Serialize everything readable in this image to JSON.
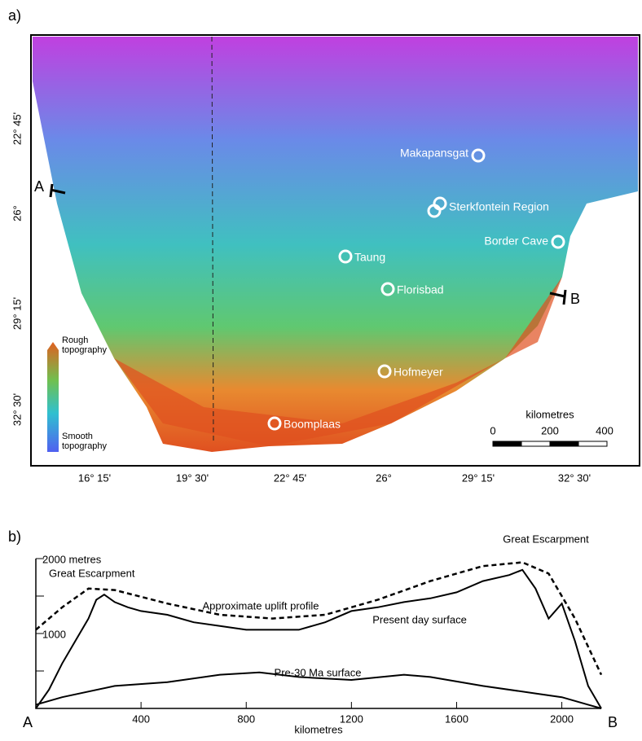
{
  "map": {
    "panel_label": "a)",
    "sites": [
      "Makapansgat",
      "Sterkfontein Region",
      "Border Cave",
      "Taung",
      "Florisbad",
      "Hofmeyer",
      "Boomplaas"
    ],
    "lon_labels": [
      "16° 15'",
      "19° 30'",
      "22° 45'",
      "26°",
      "29° 15'",
      "32° 30'"
    ],
    "lat_labels": [
      "22° 45'",
      "26°",
      "29° 15'",
      "32° 30'"
    ],
    "legend": {
      "top": "Rough topography",
      "bottom": "Smooth topography"
    },
    "scale": {
      "title": "kilometres",
      "labels": [
        "0",
        "200",
        "400"
      ]
    },
    "section_ends": [
      "A",
      "B"
    ]
  },
  "chart_data": {
    "type": "line",
    "panel_label": "b)",
    "x_label": "kilometres",
    "end_labels": [
      "A",
      "B"
    ],
    "annotations": [
      "Great Escarpment",
      "Great Escarpment",
      "Approximate uplift profile",
      "Present day surface",
      "Pre-30 Ma surface"
    ],
    "xlim": [
      0,
      2150
    ],
    "ylim": [
      0,
      2000
    ],
    "xticks": [
      400,
      800,
      1200,
      1600,
      2000
    ],
    "yticks": [
      {
        "value": 500,
        "label": null
      },
      1000,
      {
        "value": 1500,
        "label": null
      },
      {
        "value": 2000,
        "label": "2000 metres"
      }
    ],
    "series": [
      {
        "name": "Present day surface",
        "color": "#000000",
        "dash": false,
        "x": [
          0,
          50,
          100,
          150,
          200,
          230,
          260,
          300,
          350,
          400,
          500,
          600,
          700,
          800,
          900,
          1000,
          1050,
          1100,
          1200,
          1300,
          1400,
          1500,
          1600,
          1700,
          1800,
          1850,
          1900,
          1950,
          2000,
          2050,
          2100,
          2150
        ],
        "values": [
          0,
          250,
          600,
          900,
          1200,
          1450,
          1520,
          1420,
          1350,
          1300,
          1250,
          1150,
          1100,
          1050,
          1050,
          1050,
          1100,
          1150,
          1300,
          1350,
          1420,
          1470,
          1550,
          1700,
          1780,
          1850,
          1600,
          1200,
          1400,
          900,
          300,
          0
        ]
      },
      {
        "name": "Approximate uplift profile",
        "color": "#000000",
        "dash": true,
        "x": [
          0,
          100,
          200,
          300,
          500,
          700,
          900,
          1100,
          1300,
          1500,
          1700,
          1850,
          1950,
          2050,
          2150
        ],
        "values": [
          1050,
          1350,
          1600,
          1580,
          1400,
          1250,
          1200,
          1250,
          1450,
          1700,
          1900,
          1950,
          1800,
          1200,
          450
        ]
      },
      {
        "name": "Pre-30 Ma surface",
        "color": "#000000",
        "dash": false,
        "x": [
          0,
          100,
          300,
          500,
          700,
          850,
          1000,
          1200,
          1400,
          1500,
          1700,
          1900,
          2000,
          2100,
          2150
        ],
        "values": [
          50,
          150,
          300,
          350,
          450,
          480,
          420,
          380,
          450,
          420,
          300,
          200,
          150,
          50,
          0
        ]
      }
    ]
  }
}
